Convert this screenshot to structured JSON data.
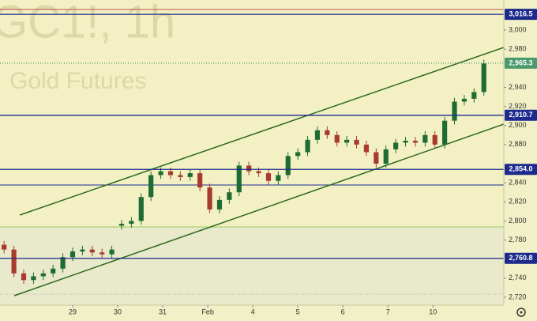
{
  "chart_data": {
    "type": "candlestick",
    "watermark_title": "GC1!, 1h",
    "watermark_subtitle": "Gold Futures",
    "x": [
      -35,
      -30,
      -25,
      -20,
      -15,
      -10,
      -5,
      0,
      5,
      10,
      15,
      20,
      25,
      30,
      35,
      40,
      45,
      50,
      55,
      60,
      65,
      70,
      75,
      80,
      85,
      90,
      95,
      100,
      105,
      110,
      115,
      120,
      125,
      130,
      135,
      140,
      145,
      150,
      155,
      160,
      165,
      170,
      175,
      180,
      185,
      190,
      195,
      200,
      205,
      210
    ],
    "open": [
      2775,
      2770,
      2745,
      2738,
      2742,
      2745,
      2750,
      2762,
      2768,
      2770,
      2767,
      2765,
      2795,
      2797,
      2800,
      2825,
      2848,
      2852,
      2848,
      2846,
      2850,
      2835,
      2812,
      2822,
      2830,
      2858,
      2852,
      2850,
      2842,
      2848,
      2868,
      2872,
      2885,
      2895,
      2890,
      2882,
      2885,
      2880,
      2872,
      2860,
      2875,
      2882,
      2884,
      2882,
      2890,
      2880,
      2905,
      2925,
      2928,
      2935
    ],
    "high": [
      2779,
      2774,
      2749,
      2746,
      2749,
      2754,
      2766,
      2772,
      2774,
      2774,
      2771,
      2774,
      2801,
      2804,
      2829,
      2852,
      2856,
      2856,
      2852,
      2854,
      2854,
      2839,
      2826,
      2834,
      2862,
      2862,
      2856,
      2854,
      2852,
      2872,
      2876,
      2889,
      2899,
      2899,
      2894,
      2889,
      2889,
      2884,
      2876,
      2879,
      2886,
      2888,
      2888,
      2894,
      2894,
      2909,
      2929,
      2932,
      2939,
      2969
    ],
    "low": [
      2766,
      2741,
      2734,
      2734,
      2738,
      2741,
      2746,
      2758,
      2764,
      2763,
      2761,
      2761,
      2791,
      2793,
      2796,
      2821,
      2844,
      2844,
      2842,
      2842,
      2831,
      2808,
      2808,
      2818,
      2826,
      2848,
      2846,
      2838,
      2838,
      2844,
      2864,
      2868,
      2881,
      2886,
      2878,
      2878,
      2876,
      2868,
      2856,
      2856,
      2871,
      2878,
      2878,
      2878,
      2876,
      2876,
      2901,
      2921,
      2924,
      2931
    ],
    "close": [
      2770,
      2745,
      2738,
      2742,
      2745,
      2750,
      2762,
      2768,
      2770,
      2767,
      2765,
      2770,
      2797,
      2800,
      2825,
      2848,
      2852,
      2848,
      2846,
      2850,
      2835,
      2812,
      2822,
      2830,
      2858,
      2852,
      2850,
      2842,
      2848,
      2868,
      2872,
      2885,
      2895,
      2890,
      2882,
      2885,
      2880,
      2872,
      2860,
      2875,
      2882,
      2884,
      2882,
      2890,
      2880,
      2905,
      2925,
      2928,
      2935,
      2965
    ],
    "up_color": "#1f6b34",
    "down_color": "#a83a2e",
    "xlim": [
      -37.1,
      220.2
    ],
    "xticks": [
      {
        "value": 0,
        "label": "29"
      },
      {
        "value": 23,
        "label": "30"
      },
      {
        "value": 46,
        "label": "31"
      },
      {
        "value": 69,
        "label": "Feb"
      },
      {
        "value": 92,
        "label": "4"
      },
      {
        "value": 115,
        "label": "5"
      },
      {
        "value": 138,
        "label": "6"
      },
      {
        "value": 161,
        "label": "7"
      },
      {
        "value": 184,
        "label": "10"
      }
    ],
    "ylim": [
      2711.7,
      3031.5
    ],
    "yticks": [
      {
        "value": 3000,
        "label": "3,000"
      },
      {
        "value": 2980,
        "label": "2,980"
      },
      {
        "value": 2940,
        "label": "2,940"
      },
      {
        "value": 2920,
        "label": "2,920"
      },
      {
        "value": 2900,
        "label": "2,900"
      },
      {
        "value": 2880,
        "label": "2,880"
      },
      {
        "value": 2840,
        "label": "2,840"
      },
      {
        "value": 2820,
        "label": "2,820"
      },
      {
        "value": 2800,
        "label": "2,800"
      },
      {
        "value": 2780,
        "label": "2,780"
      },
      {
        "value": 2740,
        "label": "2,740"
      },
      {
        "value": 2720,
        "label": "2,720"
      }
    ],
    "levels": [
      {
        "value": 3016.5,
        "label": "3,016.5",
        "color": "#1b2a8c"
      },
      {
        "value": 2965.3,
        "label": "2,965.3",
        "color": "#4a9a6c"
      },
      {
        "value": 2910.7,
        "label": "2,910.7",
        "color": "#1b2a8c"
      },
      {
        "value": 2854.0,
        "label": "2,854.0",
        "color": "#1b2a8c"
      },
      {
        "value": 2760.8,
        "label": "2,760.8",
        "color": "#1b2a8c"
      }
    ]
  }
}
